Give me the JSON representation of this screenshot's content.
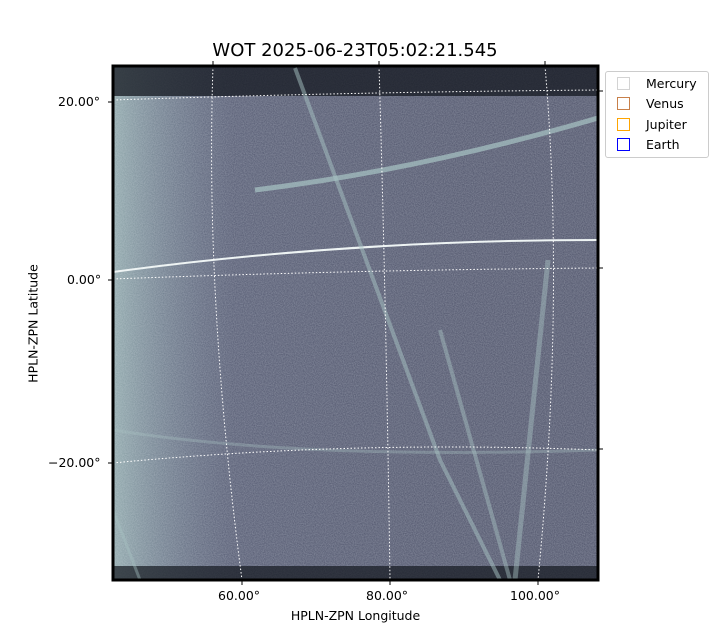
{
  "chart_data": {
    "type": "image",
    "title": "WOT 2025-06-23T05:02:21.545",
    "xlabel": "HPLN-ZPN Longitude",
    "ylabel": "HPLN-ZPN Latitude",
    "x_ticks": [
      "60.00°",
      "80.00°",
      "100.00°"
    ],
    "y_ticks": [
      "20.00°",
      "0.00°",
      "−20.00°"
    ],
    "colormap": "bone",
    "grid": "dotted white coordinate grid",
    "legend": {
      "placement": "outside top-right",
      "entries": [
        {
          "name": "Mercury",
          "color": "#d3d3d3"
        },
        {
          "name": "Venus",
          "color": "#c8804a"
        },
        {
          "name": "Jupiter",
          "color": "#ffa500"
        },
        {
          "name": "Earth",
          "color": "#0000ff"
        }
      ]
    }
  }
}
